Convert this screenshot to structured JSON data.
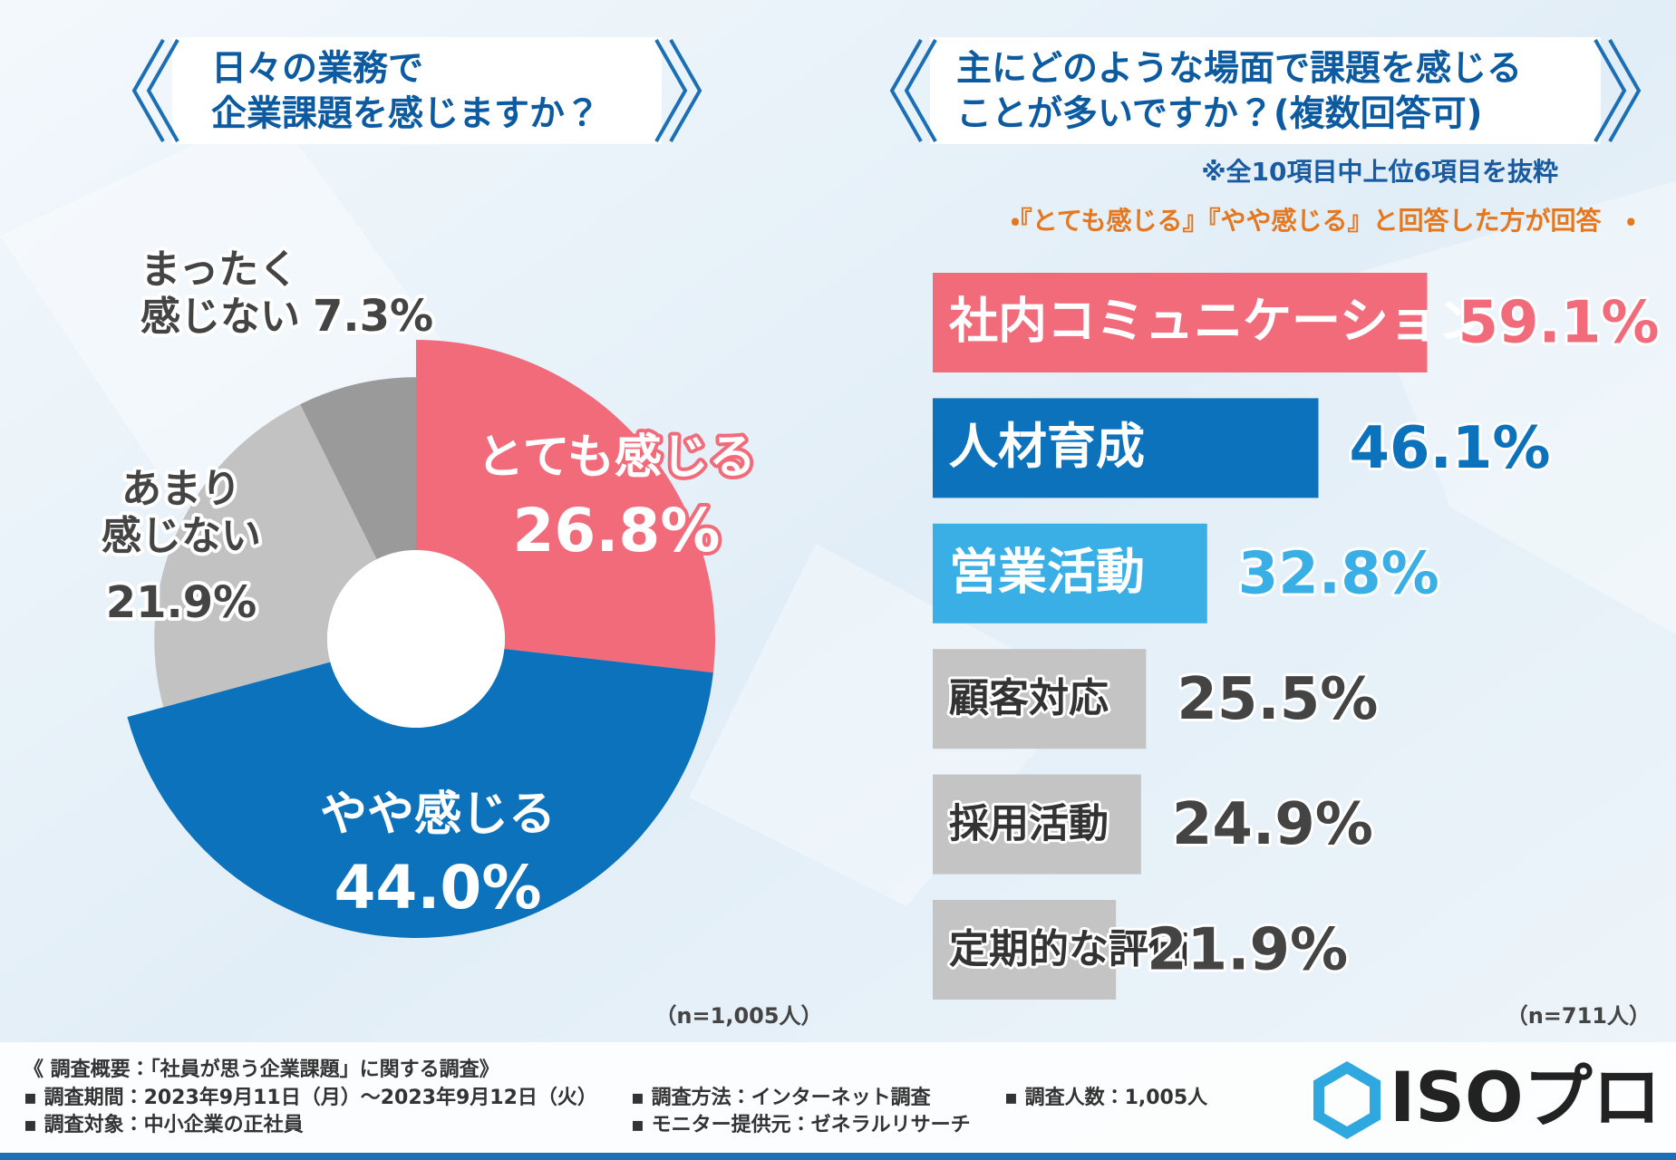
{
  "chart_data": [
    {
      "type": "donut",
      "title": [
        "日々の業務で",
        "企業課題を感じますか？"
      ],
      "categories": [
        [
          "とても感じる"
        ],
        [
          "やや感じる"
        ],
        [
          "あまり",
          "感じない"
        ],
        [
          "まったく",
          "感じない"
        ]
      ],
      "values": [
        26.8,
        44.0,
        21.9,
        7.3
      ],
      "value_labels": [
        "26.8%",
        "44.0%",
        "21.9%",
        "7.3%"
      ],
      "colors": [
        "#f26b7a",
        "#0b72bb",
        "#c2c2c2",
        "#9a9a9a"
      ],
      "note": "（n=1,005人）"
    },
    {
      "type": "hbar",
      "title": [
        "主にどのような場面で課題を感じる",
        "ことが多いですか？(複数回答可)"
      ],
      "subtitle": "※全10項目中上位6項目を抜粋",
      "subtitle2": "・『とても感じる』『やや感じる』と回答した方が回答　・",
      "categories": [
        "社内コミュニケーション",
        "人材育成",
        "営業活動",
        "顧客対応",
        "採用活動",
        "定期的な評価"
      ],
      "values": [
        59.1,
        46.1,
        32.8,
        25.5,
        24.9,
        21.9
      ],
      "value_labels": [
        "59.1%",
        "46.1%",
        "32.8%",
        "25.5%",
        "24.9%",
        "21.9%"
      ],
      "colors": [
        "#f26b7a",
        "#0b72bb",
        "#3aafe6",
        "#c4c4c4",
        "#c4c4c4",
        "#c4c4c4"
      ],
      "label_colors": [
        "#ffffff",
        "#ffffff",
        "#ffffff",
        "#333333",
        "#333333",
        "#333333"
      ],
      "value_label_colors": [
        "#f26b7a",
        "#0b72bb",
        "#3aafe6",
        "#444444",
        "#444444",
        "#444444"
      ],
      "xlim": [
        0,
        100
      ],
      "note": "（n=711人）"
    }
  ],
  "footer": {
    "heading": "《 調査概要：「社員が思う企業課題」に関する調査》",
    "items": [
      "▪ 調査期間：2023年9月11日（月）～2023年9月12日（火）",
      "▪ 調査方法：インターネット調査",
      "▪ 調査人数：1,005人",
      "▪ 調査対象：中小企業の正社員",
      "▪ モニター提供元：ゼネラルリサーチ"
    ]
  },
  "logo": "ISOプロ"
}
